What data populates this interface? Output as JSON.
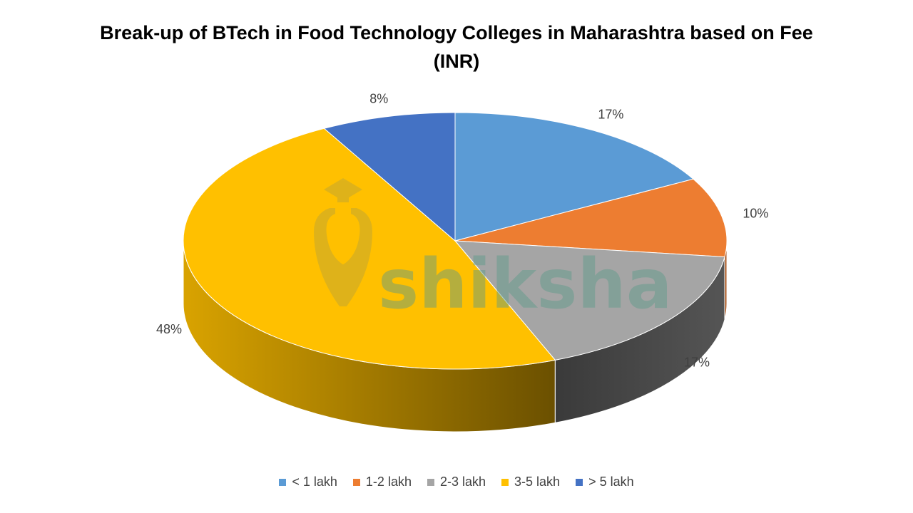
{
  "chart_data": {
    "type": "pie",
    "title": "Break-up of BTech in Food Technology Colleges in Maharashtra based on Fee (INR)",
    "categories": [
      "< 1 lakh",
      "1-2 lakh",
      "2-3 lakh",
      "3-5 lakh",
      "> 5 lakh"
    ],
    "values": [
      17,
      10,
      17,
      48,
      8
    ],
    "data_labels": [
      "17%",
      "10%",
      "17%",
      "48%",
      "8%"
    ],
    "colors": [
      "#5B9BD5",
      "#ED7D31",
      "#A5A5A5",
      "#FFC000",
      "#4472C4"
    ],
    "side_colors": [
      "#3E6D99",
      "#A9561F",
      "#454545",
      "#B88A00",
      "#2F5597"
    ],
    "legend_position": "bottom",
    "style": "3d-pie"
  },
  "watermark": {
    "text": "shiksha"
  }
}
